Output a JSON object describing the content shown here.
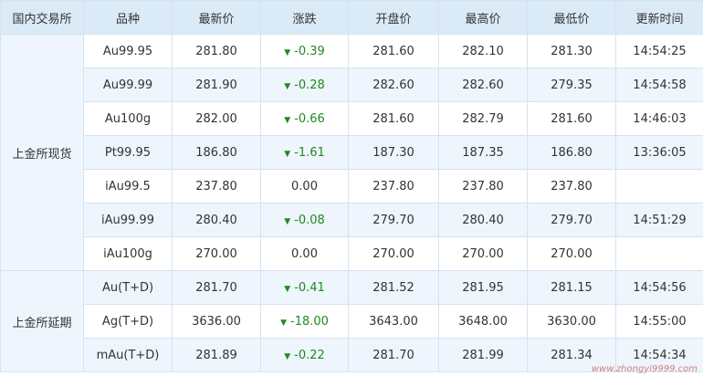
{
  "table": {
    "header": [
      "国内交易所",
      "品种",
      "最新价",
      "涨跌",
      "开盘价",
      "最高价",
      "最低价",
      "更新时间"
    ],
    "groups": [
      {
        "name": "上金所现货",
        "rows": [
          [
            "Au99.95",
            "281.80",
            "-0.39",
            "281.60",
            "282.10",
            "281.30",
            "14:54:25"
          ],
          [
            "Au99.99",
            "281.90",
            "-0.28",
            "282.60",
            "282.60",
            "279.35",
            "14:54:58"
          ],
          [
            "Au100g",
            "282.00",
            "-0.66",
            "281.60",
            "282.79",
            "281.60",
            "14:46:03"
          ],
          [
            "Pt99.95",
            "186.80",
            "-1.61",
            "187.30",
            "187.35",
            "186.80",
            "13:36:05"
          ],
          [
            "iAu99.5",
            "237.80",
            "0.00",
            "237.80",
            "237.80",
            "237.80",
            null
          ],
          [
            "iAu99.99",
            "280.40",
            "-0.08",
            "279.70",
            "280.40",
            "279.70",
            "14:51:29"
          ],
          [
            "iAu100g",
            "270.00",
            "0.00",
            "270.00",
            "270.00",
            "270.00",
            null
          ]
        ]
      },
      {
        "name": "上金所延期",
        "rows": [
          [
            "Au(T+D)",
            "281.70",
            "-0.41",
            "281.52",
            "281.95",
            "281.15",
            "14:54:56"
          ],
          [
            "Ag(T+D)",
            "3636.00",
            "-18.00",
            "3643.00",
            "3648.00",
            "3630.00",
            "14:55:00"
          ],
          [
            "mAu(T+D)",
            "281.89",
            "-0.22",
            "281.70",
            "281.99",
            "281.34",
            "14:54:34"
          ]
        ]
      }
    ],
    "watermark": "www.zhongyi9999.com"
  }
}
